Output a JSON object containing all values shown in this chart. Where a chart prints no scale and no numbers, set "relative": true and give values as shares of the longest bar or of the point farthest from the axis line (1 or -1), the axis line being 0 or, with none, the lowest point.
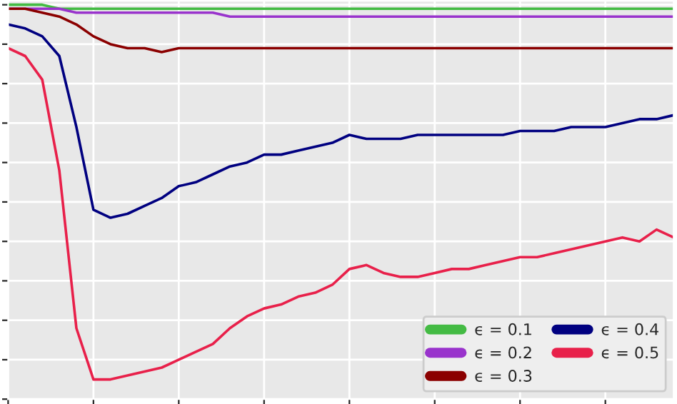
{
  "chart_data": {
    "type": "line",
    "relative": true,
    "grid": true,
    "legend": "bottom right",
    "categories": [
      null,
      null,
      null,
      null,
      null,
      null,
      null,
      null,
      null,
      null,
      null,
      null,
      null,
      null,
      null,
      null,
      null,
      null,
      null,
      null,
      null,
      null,
      null,
      null,
      null,
      null,
      null,
      null,
      null,
      null,
      null,
      null,
      null,
      null,
      null,
      null,
      null,
      null,
      null,
      null
    ],
    "series": [
      {
        "name": "ϵ = 0.1",
        "color": "#44bb44",
        "values": [
          1.0,
          1.0,
          1.0,
          0.99,
          0.99,
          0.99,
          0.99,
          0.99,
          0.99,
          0.99,
          0.99,
          0.99,
          0.99,
          0.99,
          0.99,
          0.99,
          0.99,
          0.99,
          0.99,
          0.99,
          0.99,
          0.99,
          0.99,
          0.99,
          0.99,
          0.99,
          0.99,
          0.99,
          0.99,
          0.99,
          0.99,
          0.99,
          0.99,
          0.99,
          0.99,
          0.99,
          0.99,
          0.99,
          0.99,
          0.99
        ]
      },
      {
        "name": "ϵ = 0.2",
        "color": "#9933cc",
        "values": [
          0.99,
          0.99,
          0.99,
          0.99,
          0.98,
          0.98,
          0.98,
          0.98,
          0.98,
          0.98,
          0.98,
          0.98,
          0.98,
          0.97,
          0.97,
          0.97,
          0.97,
          0.97,
          0.97,
          0.97,
          0.97,
          0.97,
          0.97,
          0.97,
          0.97,
          0.97,
          0.97,
          0.97,
          0.97,
          0.97,
          0.97,
          0.97,
          0.97,
          0.97,
          0.97,
          0.97,
          0.97,
          0.97,
          0.97,
          0.97
        ]
      },
      {
        "name": "ϵ = 0.3",
        "color": "#8b0000",
        "values": [
          0.99,
          0.99,
          0.98,
          0.97,
          0.95,
          0.92,
          0.9,
          0.89,
          0.89,
          0.88,
          0.89,
          0.89,
          0.89,
          0.89,
          0.89,
          0.89,
          0.89,
          0.89,
          0.89,
          0.89,
          0.89,
          0.89,
          0.89,
          0.89,
          0.89,
          0.89,
          0.89,
          0.89,
          0.89,
          0.89,
          0.89,
          0.89,
          0.89,
          0.89,
          0.89,
          0.89,
          0.89,
          0.89,
          0.89,
          0.89
        ]
      },
      {
        "name": "ϵ = 0.4",
        "color": "#000080",
        "values": [
          0.95,
          0.94,
          0.92,
          0.87,
          0.69,
          0.48,
          0.46,
          0.47,
          0.49,
          0.51,
          0.54,
          0.55,
          0.57,
          0.59,
          0.6,
          0.62,
          0.62,
          0.63,
          0.64,
          0.65,
          0.67,
          0.66,
          0.66,
          0.66,
          0.67,
          0.67,
          0.67,
          0.67,
          0.67,
          0.67,
          0.68,
          0.68,
          0.68,
          0.69,
          0.69,
          0.69,
          0.7,
          0.71,
          0.71,
          0.72
        ]
      },
      {
        "name": "ϵ = 0.5",
        "color": "#e8204a",
        "values": [
          0.89,
          0.87,
          0.81,
          0.58,
          0.18,
          0.05,
          0.05,
          0.06,
          0.07,
          0.08,
          0.1,
          0.12,
          0.14,
          0.18,
          0.21,
          0.23,
          0.24,
          0.26,
          0.27,
          0.29,
          0.33,
          0.34,
          0.32,
          0.31,
          0.31,
          0.32,
          0.33,
          0.33,
          0.34,
          0.35,
          0.36,
          0.36,
          0.37,
          0.38,
          0.39,
          0.4,
          0.41,
          0.4,
          0.43,
          0.41
        ]
      }
    ]
  }
}
